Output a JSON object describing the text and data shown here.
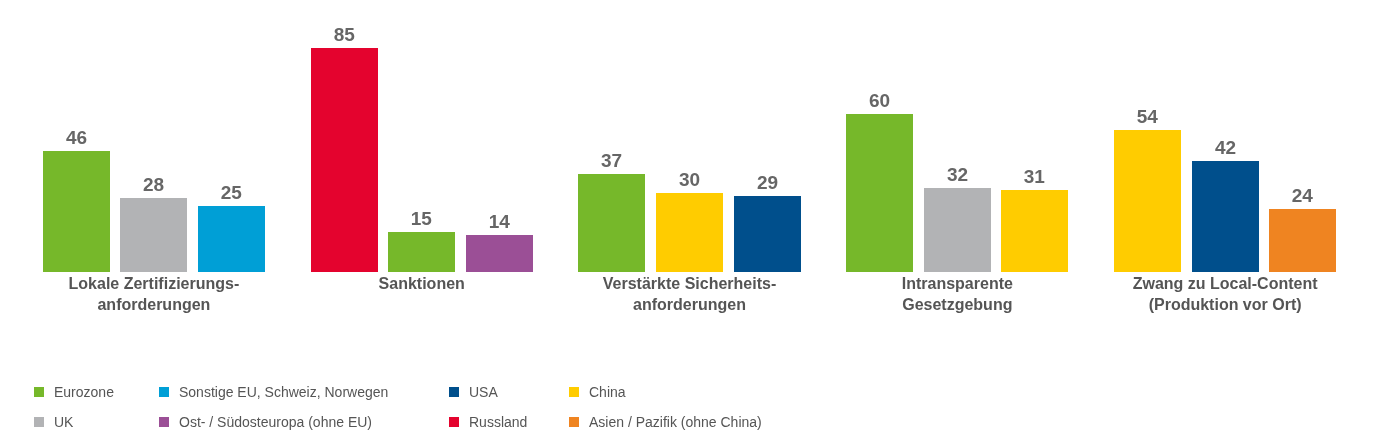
{
  "chart_data": {
    "type": "bar",
    "categories": [
      "Lokale Zertifizierungs-\nanforderungen",
      "Sanktionen",
      "Verstärkte Sicherheits-\nanforderungen",
      "Intransparente\nGesetzgebung",
      "Zwang zu Local-Content\n(Produktion vor Ort)"
    ],
    "series": [
      {
        "name": "Eurozone",
        "color": "#76b82a",
        "values": [
          46,
          15,
          37,
          60,
          null
        ]
      },
      {
        "name": "Sonstige EU, Schweiz, Norwegen",
        "color": "#009fd6",
        "values": [
          25,
          null,
          null,
          null,
          null
        ]
      },
      {
        "name": "USA",
        "color": "#004f8c",
        "values": [
          null,
          null,
          29,
          null,
          42
        ]
      },
      {
        "name": "China",
        "color": "#ffcc00",
        "values": [
          null,
          null,
          30,
          31,
          54
        ]
      },
      {
        "name": "UK",
        "color": "#b2b3b5",
        "values": [
          28,
          null,
          null,
          32,
          null
        ]
      },
      {
        "name": "Ost- / Südosteuropa (ohne EU)",
        "color": "#9b4f96",
        "values": [
          null,
          14,
          null,
          null,
          null
        ]
      },
      {
        "name": "Russland",
        "color": "#e4032e",
        "values": [
          null,
          85,
          null,
          null,
          null
        ]
      },
      {
        "name": "Asien / Pazifik (ohne China)",
        "color": "#ef8421",
        "values": [
          null,
          null,
          null,
          null,
          24
        ]
      }
    ],
    "data_labels": true,
    "legend": "bottom",
    "grid": false
  }
}
